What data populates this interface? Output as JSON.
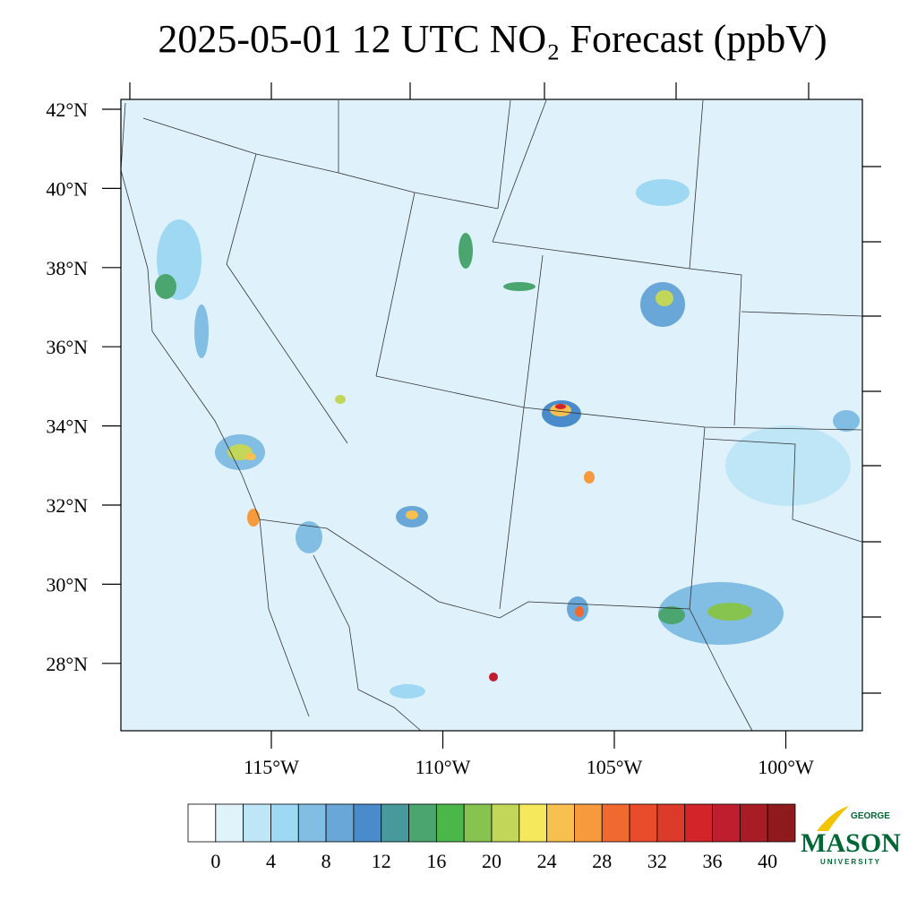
{
  "title": "2025-05-01 12 UTC NO₂ Forecast (ppbV)",
  "lat_ticks": [
    {
      "value": 42,
      "label": "42°N"
    },
    {
      "value": 40,
      "label": "40°N"
    },
    {
      "value": 38,
      "label": "38°N"
    },
    {
      "value": 36,
      "label": "36°N"
    },
    {
      "value": 34,
      "label": "34°N"
    },
    {
      "value": 32,
      "label": "32°N"
    },
    {
      "value": 30,
      "label": "30°N"
    },
    {
      "value": 28,
      "label": "28°N"
    }
  ],
  "lon_ticks": [
    {
      "value": -115,
      "label": "115°W"
    },
    {
      "value": -110,
      "label": "110°W"
    },
    {
      "value": -105,
      "label": "105°W"
    },
    {
      "value": -100,
      "label": "100°W"
    }
  ],
  "colorbar": {
    "colors": [
      "#ffffff",
      "#e0f3fb",
      "#bfe6f7",
      "#9ed8f2",
      "#82bde3",
      "#6aa7d9",
      "#4a8ccb",
      "#47999c",
      "#4aa56f",
      "#4bb74a",
      "#86c44f",
      "#c2d65a",
      "#f5e85c",
      "#f8c04f",
      "#f79a3e",
      "#f06a30",
      "#e84c2b",
      "#dc3a2a",
      "#d22429",
      "#be1e2d",
      "#a81d25",
      "#8e1a1d"
    ],
    "levels": [
      0,
      2,
      4,
      6,
      8,
      10,
      12,
      14,
      16,
      18,
      20,
      22,
      24,
      26,
      28,
      30,
      32,
      34,
      36,
      38,
      40
    ],
    "ticks": [
      0,
      4,
      8,
      12,
      16,
      20,
      24,
      28,
      32,
      36,
      40
    ]
  },
  "logo": {
    "top": "GEORGE",
    "main": "MASON",
    "bottom": "UNIVERSITY"
  }
}
